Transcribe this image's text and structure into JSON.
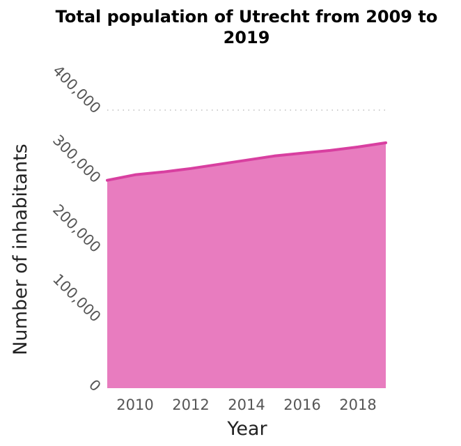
{
  "chart_data": {
    "type": "area",
    "title_lines": [
      "Total population of Utrecht from 2009 to",
      "2019"
    ],
    "xlabel": "Year",
    "ylabel": "Number of inhabitants",
    "x": [
      2009,
      2010,
      2011,
      2012,
      2013,
      2014,
      2015,
      2016,
      2017,
      2018,
      2019
    ],
    "series": [
      {
        "values": [
          299000,
          307000,
          311000,
          316000,
          322000,
          328000,
          334000,
          338000,
          342000,
          347000,
          353000
        ]
      }
    ],
    "xlim": [
      2009,
      2019
    ],
    "ylim": [
      0,
      400000
    ],
    "x_ticks": [
      {
        "value": 2010,
        "label": "2010"
      },
      {
        "value": 2012,
        "label": "2012"
      },
      {
        "value": 2014,
        "label": "2014"
      },
      {
        "value": 2016,
        "label": "2016"
      },
      {
        "value": 2018,
        "label": "2018"
      }
    ],
    "y_ticks": [
      {
        "value": 0,
        "label": "0"
      },
      {
        "value": 100000,
        "label": "100,000"
      },
      {
        "value": 200000,
        "label": "200,000"
      },
      {
        "value": 300000,
        "label": "300,000"
      },
      {
        "value": 400000,
        "label": "400,000"
      }
    ],
    "grid": "horizontal dotted",
    "colors": {
      "fill": "#e87cbf",
      "line": "#d83fa0",
      "tick_text": "#555555"
    }
  }
}
